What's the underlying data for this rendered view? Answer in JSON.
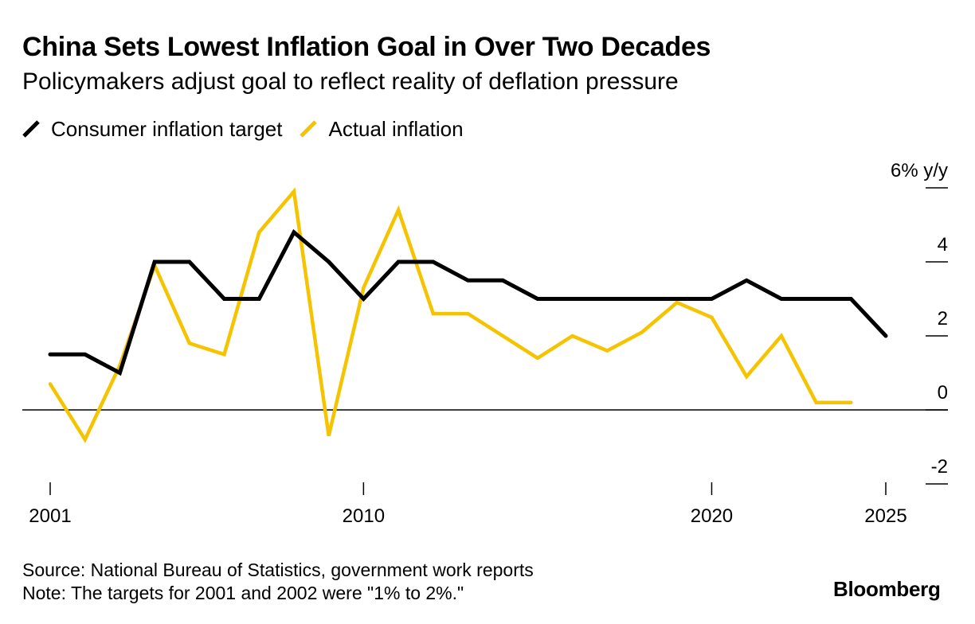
{
  "title": "China Sets Lowest Inflation Goal in Over Two Decades",
  "subtitle": "Policymakers adjust goal to reflect reality of deflation pressure",
  "legend": [
    {
      "label": "Consumer inflation target",
      "color": "#000000"
    },
    {
      "label": "Actual inflation",
      "color": "#F5C400"
    }
  ],
  "footer": {
    "source": "Source: National Bureau of Statistics, government work reports",
    "note": "Note: The targets for 2001 and 2002 were \"1% to 2%.\""
  },
  "brand": "Bloomberg",
  "chart_data": {
    "type": "line",
    "title": "China Sets Lowest Inflation Goal in Over Two Decades",
    "xlabel": "",
    "ylabel": "6% y/y",
    "x": [
      2001,
      2002,
      2003,
      2004,
      2005,
      2006,
      2007,
      2008,
      2009,
      2010,
      2011,
      2012,
      2013,
      2014,
      2015,
      2016,
      2017,
      2018,
      2019,
      2020,
      2021,
      2022,
      2023,
      2024,
      2025
    ],
    "xlim": [
      2001,
      2025
    ],
    "ylim": [
      -2,
      6
    ],
    "series": [
      {
        "name": "Consumer inflation target",
        "color": "#000000",
        "values": [
          1.5,
          1.5,
          1,
          4,
          4,
          3,
          3,
          4.8,
          4,
          3,
          4,
          4,
          3.5,
          3.5,
          3,
          3,
          3,
          3,
          3,
          3,
          3.5,
          3,
          3,
          3,
          2
        ]
      },
      {
        "name": "Actual inflation",
        "color": "#F5C400",
        "values": [
          0.7,
          -0.8,
          1.2,
          3.9,
          1.8,
          1.5,
          4.8,
          5.9,
          -0.7,
          3.3,
          5.4,
          2.6,
          2.6,
          2.0,
          1.4,
          2.0,
          1.6,
          2.1,
          2.9,
          2.5,
          0.9,
          2.0,
          0.2,
          0.2,
          null
        ]
      }
    ],
    "x_ticks": [
      2001,
      2010,
      2020,
      2025
    ],
    "x_tick_labels": [
      "2001",
      "2010",
      "2020",
      "2025"
    ],
    "y_ticks": [
      -2,
      0,
      2,
      4,
      6
    ],
    "y_tick_labels": [
      "-2",
      "0",
      "2",
      "4",
      "6% y/y"
    ],
    "zero_line": true,
    "grid": false
  }
}
